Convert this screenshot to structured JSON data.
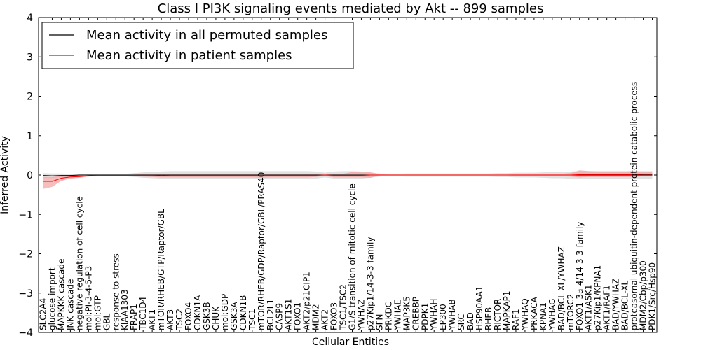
{
  "chart_data": {
    "type": "line",
    "title": "Class I PI3K signaling events mediated by Akt -- 899 samples",
    "xlabel": "Cellular Entities",
    "ylabel": "Inferred Activity",
    "ylim": [
      -4,
      4
    ],
    "yticks": [
      -4,
      -3,
      -2,
      -1,
      0,
      1,
      2,
      3,
      4
    ],
    "ytick_labels": [
      "−4",
      "−3",
      "−2",
      "−1",
      "0",
      "1",
      "2",
      "3",
      "4"
    ],
    "legend": {
      "placement": "top-left",
      "entries": [
        {
          "label": "Mean activity in all permuted samples",
          "color": "#000000"
        },
        {
          "label": "Mean activity in patient samples",
          "color": "#ff0000"
        }
      ]
    },
    "categories": [
      "SLC2A4",
      "glucose import",
      "MAPKKK cascade",
      "JNK cascade",
      "negative regulation of cell cycle",
      "mol:PI-3-4-5-P3",
      "mol:GTP",
      "GBL",
      "response to stress",
      "KIAA1303",
      "FRAP1",
      "TBC1D4",
      "AKT1",
      "mTOR/RHEB/GTP/Raptor/GBL",
      "AKT3",
      "TSC2",
      "FOXO4",
      "CDKN1A",
      "GSK3B",
      "CHUK",
      "mol:GDP",
      "GSK3A",
      "CDKN1B",
      "TSC1",
      "mTOR/RHEB/GDP/Raptor/GBL/PRAS40",
      "BCL2L1",
      "CASP9",
      "AKT1S1",
      "FOXO1",
      "AKT2/p21CIP1",
      "MDM2",
      "AKT2",
      "FOXO3",
      "TSC1/TSC2",
      "G1/S transition of mitotic cell cycle",
      "YWHAZ",
      "p27Kip1/14-3-3 family",
      "SFN",
      "PRKDC",
      "YWHAE",
      "MAP3K5",
      "CREBBP",
      "PDPK1",
      "YWHAH",
      "EP300",
      "YWHAB",
      "SRC",
      "BAD",
      "HSP90AA1",
      "RHEB",
      "RICTOR",
      "MAPKAP1",
      "RAF1",
      "YWHAQ",
      "PRKACA",
      "KPNA1",
      "YWHAG",
      "BAD/BCL-XL/YWHAZ",
      "mTORC2",
      "FOXO1-3a-4/14-3-3 family",
      "AKT1/ASK1",
      "p27Kip1/KPNA1",
      "AKT1/RAF1",
      "BAD/YWHAZ",
      "BAD/BCL-XL",
      "proteasomal ubiquitin-dependent protein catabolic process",
      "MDM2/Cbp/p300",
      "PDK1/Src/Hsp90"
    ],
    "series": [
      {
        "name": "Mean activity in all permuted samples",
        "color": "#000000",
        "band_color": "#c8c8c8",
        "values": [
          -0.01,
          -0.02,
          -0.01,
          -0.01,
          0,
          0,
          0,
          0,
          0,
          0,
          0,
          0,
          0,
          0,
          0,
          0,
          0,
          0,
          0,
          0,
          0,
          0,
          0,
          0,
          0,
          0,
          0,
          0,
          0,
          0,
          0,
          0,
          0,
          0,
          0,
          0,
          0,
          0,
          0,
          0,
          0,
          0,
          0,
          0,
          0,
          0,
          0,
          0,
          0,
          0,
          0,
          0,
          0,
          0,
          0,
          0,
          0,
          0,
          0,
          0,
          0,
          0,
          0,
          0,
          0,
          0,
          0,
          0
        ],
        "lower": [
          -0.08,
          -0.07,
          -0.06,
          -0.05,
          -0.03,
          -0.02,
          -0.02,
          -0.02,
          -0.02,
          -0.03,
          -0.05,
          -0.07,
          -0.08,
          -0.09,
          -0.1,
          -0.1,
          -0.1,
          -0.1,
          -0.1,
          -0.1,
          -0.1,
          -0.1,
          -0.1,
          -0.1,
          -0.1,
          -0.1,
          -0.1,
          -0.1,
          -0.1,
          -0.1,
          -0.09,
          -0.06,
          -0.09,
          -0.1,
          -0.1,
          -0.09,
          -0.07,
          -0.04,
          -0.02,
          -0.03,
          -0.04,
          -0.04,
          -0.04,
          -0.04,
          -0.04,
          -0.04,
          -0.04,
          -0.04,
          -0.04,
          -0.04,
          -0.05,
          -0.05,
          -0.06,
          -0.06,
          -0.06,
          -0.07,
          -0.08,
          -0.08,
          -0.09,
          -0.1,
          -0.1,
          -0.1,
          -0.1,
          -0.1,
          -0.1,
          -0.1,
          -0.1,
          -0.1
        ],
        "upper": [
          0.05,
          0.04,
          0.04,
          0.03,
          0.02,
          0.02,
          0.02,
          0.02,
          0.02,
          0.03,
          0.05,
          0.07,
          0.08,
          0.09,
          0.1,
          0.1,
          0.1,
          0.1,
          0.1,
          0.1,
          0.1,
          0.1,
          0.1,
          0.1,
          0.1,
          0.1,
          0.1,
          0.1,
          0.1,
          0.1,
          0.09,
          0.06,
          0.09,
          0.1,
          0.1,
          0.09,
          0.07,
          0.04,
          0.02,
          0.03,
          0.04,
          0.04,
          0.04,
          0.04,
          0.04,
          0.04,
          0.04,
          0.04,
          0.04,
          0.04,
          0.05,
          0.05,
          0.06,
          0.06,
          0.06,
          0.07,
          0.08,
          0.08,
          0.09,
          0.1,
          0.1,
          0.1,
          0.1,
          0.1,
          0.1,
          0.1,
          0.1,
          0.1
        ]
      },
      {
        "name": "Mean activity in patient samples",
        "color": "#ff0000",
        "band_color": "#f4a0a0",
        "values": [
          -0.16,
          -0.16,
          -0.08,
          -0.05,
          -0.04,
          -0.02,
          -0.01,
          -0.01,
          -0.01,
          -0.01,
          -0.01,
          -0.01,
          -0.01,
          -0.02,
          -0.01,
          -0.01,
          -0.01,
          -0.01,
          -0.01,
          -0.01,
          -0.01,
          -0.01,
          -0.01,
          -0.01,
          -0.01,
          -0.01,
          -0.01,
          -0.01,
          -0.01,
          -0.01,
          -0.01,
          0,
          -0.01,
          -0.01,
          -0.01,
          -0.01,
          0,
          0,
          0,
          0,
          0,
          0,
          0,
          0,
          0,
          0,
          0,
          0,
          0,
          0,
          0,
          0,
          0,
          0,
          0,
          0,
          0,
          0,
          0,
          0.01,
          0.01,
          0.01,
          0.01,
          0.01,
          0.01,
          0.01,
          0.02,
          0.02
        ],
        "lower": [
          -0.35,
          -0.3,
          -0.15,
          -0.09,
          -0.07,
          -0.04,
          -0.02,
          -0.02,
          -0.02,
          -0.02,
          -0.03,
          -0.04,
          -0.05,
          -0.06,
          -0.06,
          -0.06,
          -0.06,
          -0.06,
          -0.06,
          -0.06,
          -0.06,
          -0.06,
          -0.06,
          -0.06,
          -0.07,
          -0.06,
          -0.06,
          -0.06,
          -0.06,
          -0.06,
          -0.05,
          -0.02,
          -0.06,
          -0.06,
          -0.06,
          -0.06,
          -0.07,
          -0.01,
          -0.01,
          -0.01,
          -0.01,
          -0.01,
          -0.01,
          -0.01,
          -0.01,
          -0.01,
          -0.01,
          -0.01,
          -0.01,
          -0.01,
          -0.01,
          -0.01,
          -0.02,
          -0.02,
          -0.02,
          -0.02,
          -0.03,
          -0.03,
          -0.04,
          -0.06,
          -0.05,
          -0.05,
          -0.05,
          -0.05,
          -0.05,
          -0.05,
          -0.03,
          -0.03
        ],
        "upper": [
          -0.05,
          -0.05,
          -0.02,
          0,
          0,
          0,
          0,
          0,
          0,
          0,
          0.01,
          0.02,
          0.03,
          0.03,
          0.03,
          0.03,
          0.03,
          0.03,
          0.03,
          0.03,
          0.03,
          0.03,
          0.03,
          0.03,
          0.04,
          0.03,
          0.03,
          0.03,
          0.03,
          0.03,
          0.02,
          0.01,
          0.03,
          0.03,
          0.08,
          0.07,
          0.07,
          0.02,
          0.01,
          0.01,
          0.01,
          0.01,
          0.01,
          0.01,
          0.01,
          0.01,
          0.01,
          0.01,
          0.01,
          0.01,
          0.01,
          0.01,
          0.02,
          0.02,
          0.02,
          0.02,
          0.03,
          0.03,
          0.05,
          0.12,
          0.1,
          0.09,
          0.09,
          0.09,
          0.09,
          0.1,
          0.08,
          0.07
        ]
      }
    ]
  }
}
